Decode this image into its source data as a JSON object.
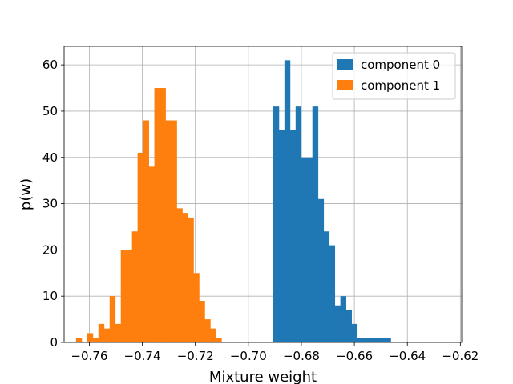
{
  "chart_data": {
    "type": "bar",
    "title": "",
    "xlabel": "Mixture weight",
    "ylabel": "p(w)",
    "xlim": [
      -0.7695,
      -0.6195
    ],
    "ylim": [
      0,
      64
    ],
    "xticks": [
      -0.76,
      -0.74,
      -0.72,
      -0.7,
      -0.68,
      -0.66,
      -0.64,
      -0.62
    ],
    "xtick_labels": [
      "−0.76",
      "−0.74",
      "−0.72",
      "−0.70",
      "−0.68",
      "−0.66",
      "−0.64",
      "−0.62"
    ],
    "yticks": [
      0,
      10,
      20,
      30,
      40,
      50,
      60
    ],
    "ytick_labels": [
      "0",
      "10",
      "20",
      "30",
      "40",
      "50",
      "60"
    ],
    "grid": true,
    "legend_position": "top-right",
    "series": [
      {
        "name": "component 0",
        "color": "#1f77b4",
        "bin_start": -0.6906,
        "bin_width": 0.00211,
        "counts": [
          51,
          46,
          61,
          46,
          51,
          40,
          40,
          51,
          31,
          24,
          21,
          8,
          10,
          7,
          4,
          1,
          1,
          1,
          1,
          1,
          1
        ]
      },
      {
        "name": "component 1",
        "color": "#ff7f0e",
        "bin_start": -0.765,
        "bin_width": 0.00211,
        "counts": [
          1,
          0,
          2,
          1,
          4,
          3,
          10,
          4,
          20,
          20,
          24,
          41,
          48,
          38,
          55,
          55,
          48,
          48,
          29,
          28,
          27,
          15,
          9,
          5,
          3,
          1
        ]
      }
    ]
  }
}
